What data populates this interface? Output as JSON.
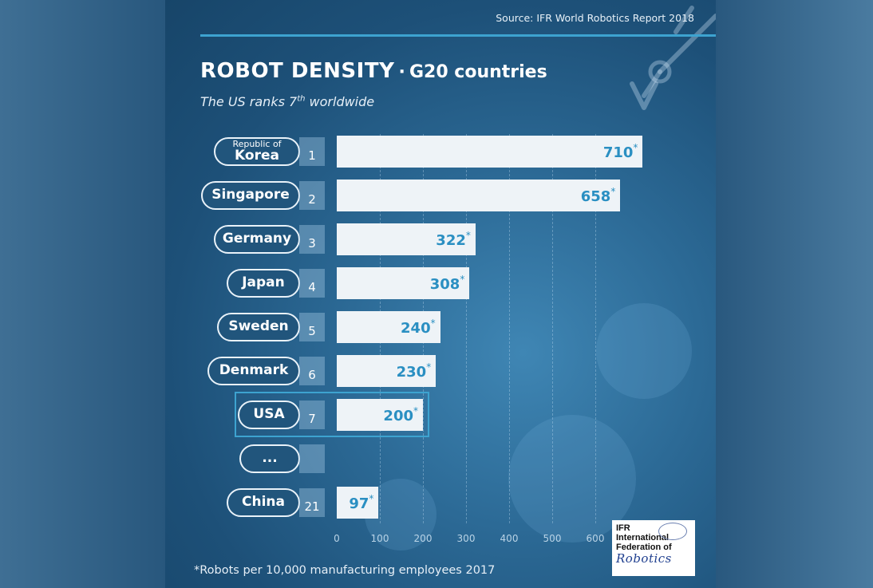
{
  "source": "Source: IFR World Robotics Report 2018",
  "title": {
    "main": "ROBOT DENSITY",
    "separator": "·",
    "sub": "G20 countries"
  },
  "subtitle": {
    "before": "The US ranks 7",
    "sup": "th",
    "after": " worldwide"
  },
  "footnote": "*Robots per 10,000 manufacturing employees 2017",
  "logo": {
    "line1": "IFR",
    "line2": "International",
    "line3": "Federation of",
    "line4": "Robotics"
  },
  "ellipsis_label": "...",
  "highlight_color": "#3da3d0",
  "bar_color": "#eef3f7",
  "value_color": "#2a8fc2",
  "chart_data": {
    "type": "bar",
    "orientation": "horizontal",
    "title": "ROBOT DENSITY · G20 countries",
    "subtitle": "The US ranks 7th worldwide",
    "xlim": [
      0,
      700
    ],
    "grid": true,
    "x_ticks": [
      0,
      100,
      200,
      300,
      400,
      500,
      600
    ],
    "x_tick_labels": [
      "0",
      "100",
      "200",
      "300",
      "400",
      "500",
      "600"
    ],
    "value_suffix": "*",
    "categories": [
      "Republic of Korea",
      "Singapore",
      "Germany",
      "Japan",
      "Sweden",
      "Denmark",
      "USA",
      "...",
      "China"
    ],
    "rows": [
      {
        "country_small": "Republic of",
        "country": "Korea",
        "rank": "1",
        "value": 710
      },
      {
        "country_small": "",
        "country": "Singapore",
        "rank": "2",
        "value": 658
      },
      {
        "country_small": "",
        "country": "Germany",
        "rank": "3",
        "value": 322
      },
      {
        "country_small": "",
        "country": "Japan",
        "rank": "4",
        "value": 308
      },
      {
        "country_small": "",
        "country": "Sweden",
        "rank": "5",
        "value": 240
      },
      {
        "country_small": "",
        "country": "Denmark",
        "rank": "6",
        "value": 230
      },
      {
        "country_small": "",
        "country": "USA",
        "rank": "7",
        "value": 200,
        "highlight": true
      },
      {
        "country_small": "",
        "country": "...",
        "rank": "",
        "value": null,
        "placeholder": true
      },
      {
        "country_small": "",
        "country": "China",
        "rank": "21",
        "value": 97
      }
    ]
  }
}
